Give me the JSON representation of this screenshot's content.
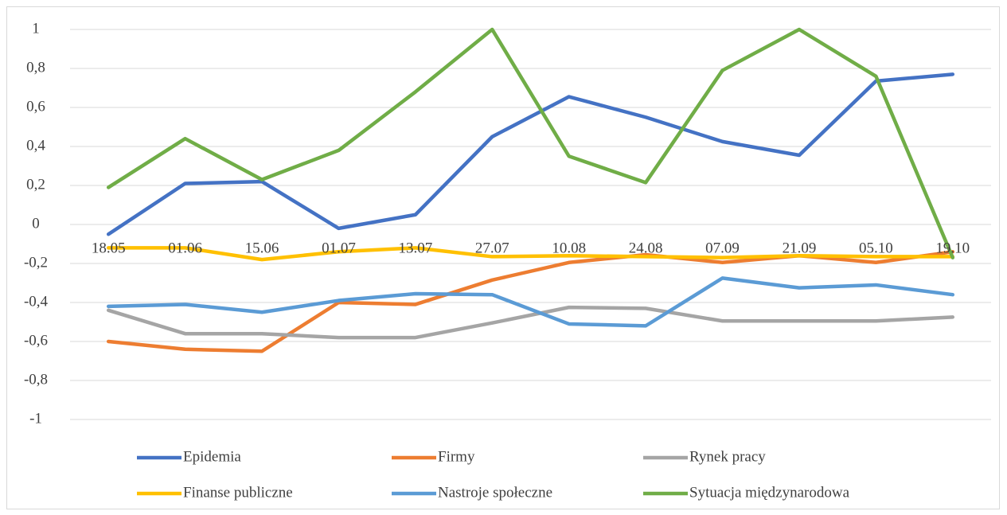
{
  "chart_data": {
    "type": "line",
    "categories": [
      "18.05",
      "01.06",
      "15.06",
      "01.07",
      "13.07",
      "27.07",
      "10.08",
      "24.08",
      "07.09",
      "21.09",
      "05.10",
      "19.10"
    ],
    "series": [
      {
        "name": "Epidemia",
        "color": "#4472c4",
        "values": [
          -0.05,
          0.21,
          0.22,
          -0.02,
          0.05,
          0.45,
          0.655,
          0.55,
          0.425,
          0.355,
          0.735,
          0.77
        ]
      },
      {
        "name": "Firmy",
        "color": "#ed7d31",
        "values": [
          -0.6,
          -0.64,
          -0.65,
          -0.4,
          -0.41,
          -0.285,
          -0.195,
          -0.155,
          -0.195,
          -0.16,
          -0.195,
          -0.14
        ]
      },
      {
        "name": "Rynek pracy",
        "color": "#a5a5a5",
        "values": [
          -0.44,
          -0.56,
          -0.56,
          -0.58,
          -0.58,
          -0.505,
          -0.425,
          -0.43,
          -0.495,
          -0.495,
          -0.495,
          -0.475
        ]
      },
      {
        "name": "Finanse publiczne",
        "color": "#ffc000",
        "values": [
          -0.12,
          -0.12,
          -0.18,
          -0.14,
          -0.12,
          -0.165,
          -0.16,
          -0.165,
          -0.17,
          -0.16,
          -0.165,
          -0.165
        ]
      },
      {
        "name": "Nastroje społeczne",
        "color": "#5b9bd5",
        "values": [
          -0.42,
          -0.41,
          -0.45,
          -0.39,
          -0.355,
          -0.36,
          -0.51,
          -0.52,
          -0.275,
          -0.325,
          -0.31,
          -0.36
        ]
      },
      {
        "name": "Sytuacja międzynarodowa",
        "color": "#70ad47",
        "values": [
          0.19,
          0.44,
          0.23,
          0.38,
          0.68,
          1.0,
          0.35,
          0.215,
          0.79,
          1.0,
          0.76,
          -0.17
        ]
      }
    ],
    "ylim": [
      -1,
      1
    ],
    "yticks": [
      -1,
      {
        "value": -0.8,
        "label": "-0,8"
      },
      {
        "value": -0.6,
        "label": "-0,6"
      },
      {
        "value": -0.4,
        "label": "-0,4"
      },
      {
        "value": -0.2,
        "label": "-0,2"
      },
      0,
      {
        "value": 0.2,
        "label": "0,2"
      },
      {
        "value": 0.4,
        "label": "0,4"
      },
      {
        "value": 0.6,
        "label": "0,6"
      },
      {
        "value": 0.8,
        "label": "0,8"
      },
      1
    ],
    "grid": true,
    "legend": "bottom"
  }
}
